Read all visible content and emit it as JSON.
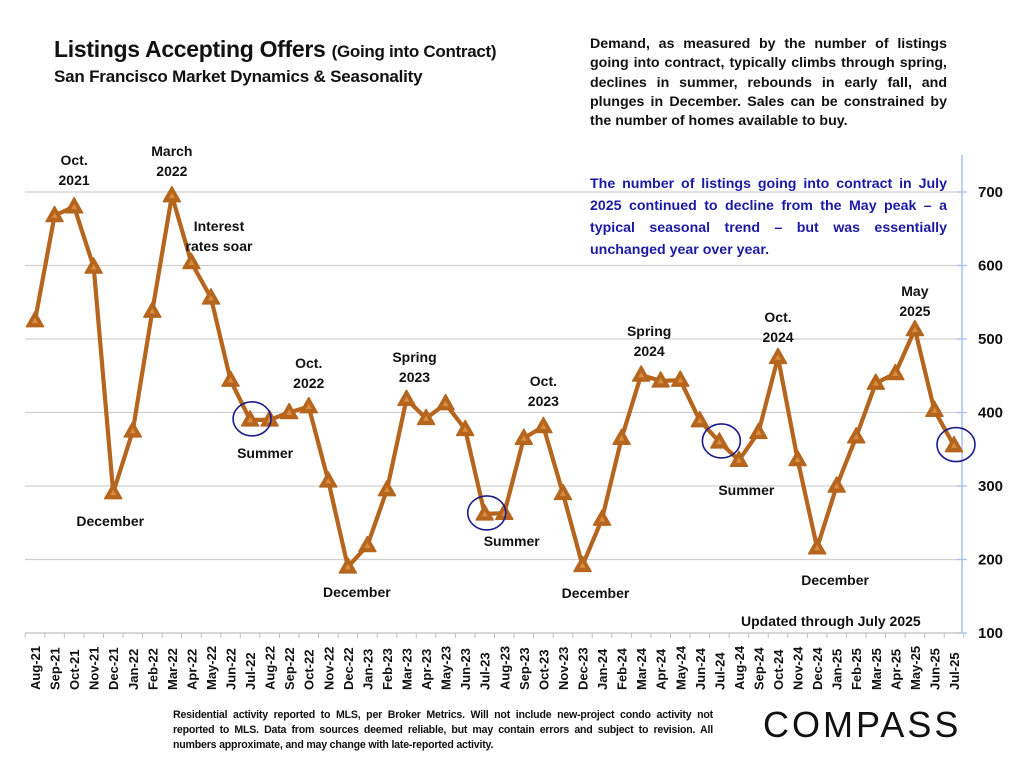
{
  "header": {
    "title_main": "Listings Accepting Offers",
    "title_paren": "(Going into Contract)",
    "subtitle": "San Francisco Market Dynamics & Seasonality"
  },
  "description": "Demand, as measured by the number of listings going into contract, typically climbs through spring, declines in summer, rebounds in early fall, and plunges in December.  Sales can be constrained by the number of homes available to  buy.",
  "highlight_note": "The number of listings going into contract in July 2025 continued to decline from the May peak – a typical seasonal trend – but was essentially unchanged year over year.",
  "updated_note": "Updated through July 2025",
  "footer": "Residential activity reported to MLS, per Broker Metrics. Will not include new-project condo activity not reported to MLS. Data from sources deemed reliable, but may contain errors and subject to revision. All numbers approximate, and may change with late-reported activity.",
  "logo": "COMPASS",
  "colors": {
    "line": "#B5651D",
    "marker_inner": "#D98C3E",
    "highlight_text": "#1A1AA6",
    "circle": "#1A1A8C",
    "gridline": "#D0D0D0",
    "axis": "#A9BFF0"
  },
  "chart_data": {
    "type": "line",
    "title": "Listings Accepting Offers (Going into Contract)",
    "subtitle": "San Francisco Market Dynamics & Seasonality",
    "xlabel": "",
    "ylabel": "",
    "ylim": [
      100,
      700
    ],
    "yticks": [
      100,
      200,
      300,
      400,
      500,
      600,
      700
    ],
    "y_axis_side": "right",
    "grid": true,
    "marker": "triangle",
    "categories": [
      "Aug-21",
      "Sep-21",
      "Oct-21",
      "Nov-21",
      "Dec-21",
      "Jan-22",
      "Feb-22",
      "Mar-22",
      "Apr-22",
      "May-22",
      "Jun-22",
      "Jul-22",
      "Aug-22",
      "Sep-22",
      "Oct-22",
      "Nov-22",
      "Dec-22",
      "Jan-23",
      "Feb-23",
      "Mar-23",
      "Apr-23",
      "May-23",
      "Jun-23",
      "Jul-23",
      "Aug-23",
      "Sep-23",
      "Oct-23",
      "Nov-23",
      "Dec-23",
      "Jan-24",
      "Feb-24",
      "Mar-24",
      "Apr-24",
      "May-24",
      "Jun-24",
      "Jul-24",
      "Aug-24",
      "Sep-24",
      "Oct-24",
      "Nov-24",
      "Dec-24",
      "Jan-25",
      "Feb-25",
      "Mar-25",
      "Apr-25",
      "May-25",
      "Jun-25",
      "Jul-25"
    ],
    "series": [
      {
        "name": "Listings accepting offers",
        "values": [
          525,
          668,
          680,
          598,
          291,
          375,
          538,
          695,
          604,
          556,
          444,
          390,
          390,
          400,
          408,
          307,
          190,
          219,
          295,
          418,
          392,
          412,
          377,
          262,
          263,
          365,
          381,
          290,
          192,
          255,
          365,
          451,
          443,
          444,
          389,
          360,
          335,
          373,
          475,
          336,
          216,
          300,
          367,
          440,
          453,
          513,
          403,
          355
        ]
      }
    ],
    "circled_points": [
      "Jul-22",
      "Jul-23",
      "Jul-24",
      "Jul-25"
    ],
    "annotations": [
      {
        "text": [
          "Oct.",
          "2021"
        ],
        "at": "Oct-21",
        "pos": "above"
      },
      {
        "text": [
          "March",
          "2022"
        ],
        "at": "Mar-22",
        "pos": "above"
      },
      {
        "text": [
          "Interest",
          "rates soar"
        ],
        "at": "May-22",
        "pos": "above-right"
      },
      {
        "text": [
          "December"
        ],
        "at": "Dec-21",
        "pos": "below"
      },
      {
        "text": [
          "Summer"
        ],
        "at": "Jul-22",
        "pos": "below"
      },
      {
        "text": [
          "Oct.",
          "2022"
        ],
        "at": "Oct-22",
        "pos": "above"
      },
      {
        "text": [
          "December"
        ],
        "at": "Dec-22",
        "pos": "below"
      },
      {
        "text": [
          "Spring",
          "2023"
        ],
        "at": "Mar-23",
        "pos": "above"
      },
      {
        "text": [
          "Summer"
        ],
        "at": "Jul-23",
        "pos": "below"
      },
      {
        "text": [
          "Oct.",
          "2023"
        ],
        "at": "Oct-23",
        "pos": "above"
      },
      {
        "text": [
          "December"
        ],
        "at": "Dec-23",
        "pos": "below"
      },
      {
        "text": [
          "Spring",
          "2024"
        ],
        "at": "Mar-24",
        "pos": "above"
      },
      {
        "text": [
          "Summer"
        ],
        "at": "Jul-24",
        "pos": "below"
      },
      {
        "text": [
          "Oct.",
          "2024"
        ],
        "at": "Oct-24",
        "pos": "above"
      },
      {
        "text": [
          "December"
        ],
        "at": "Dec-24",
        "pos": "below"
      },
      {
        "text": [
          "May",
          "2025"
        ],
        "at": "May-25",
        "pos": "above"
      }
    ]
  }
}
